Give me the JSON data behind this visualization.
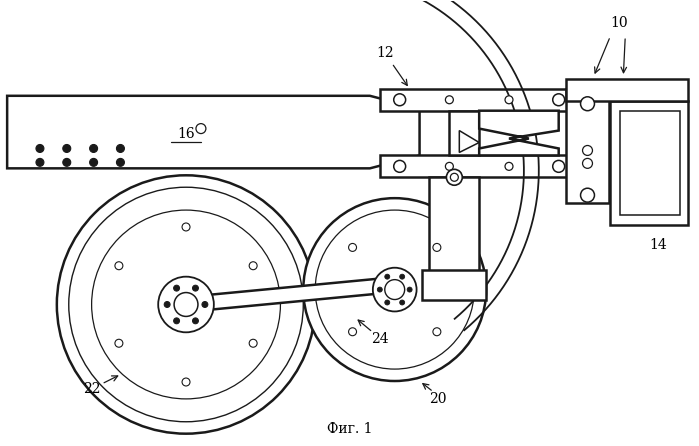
{
  "bg_color": "#ffffff",
  "line_color": "#1a1a1a",
  "title": "Фиг. 1",
  "figsize": [
    6.99,
    4.46
  ],
  "dpi": 100
}
